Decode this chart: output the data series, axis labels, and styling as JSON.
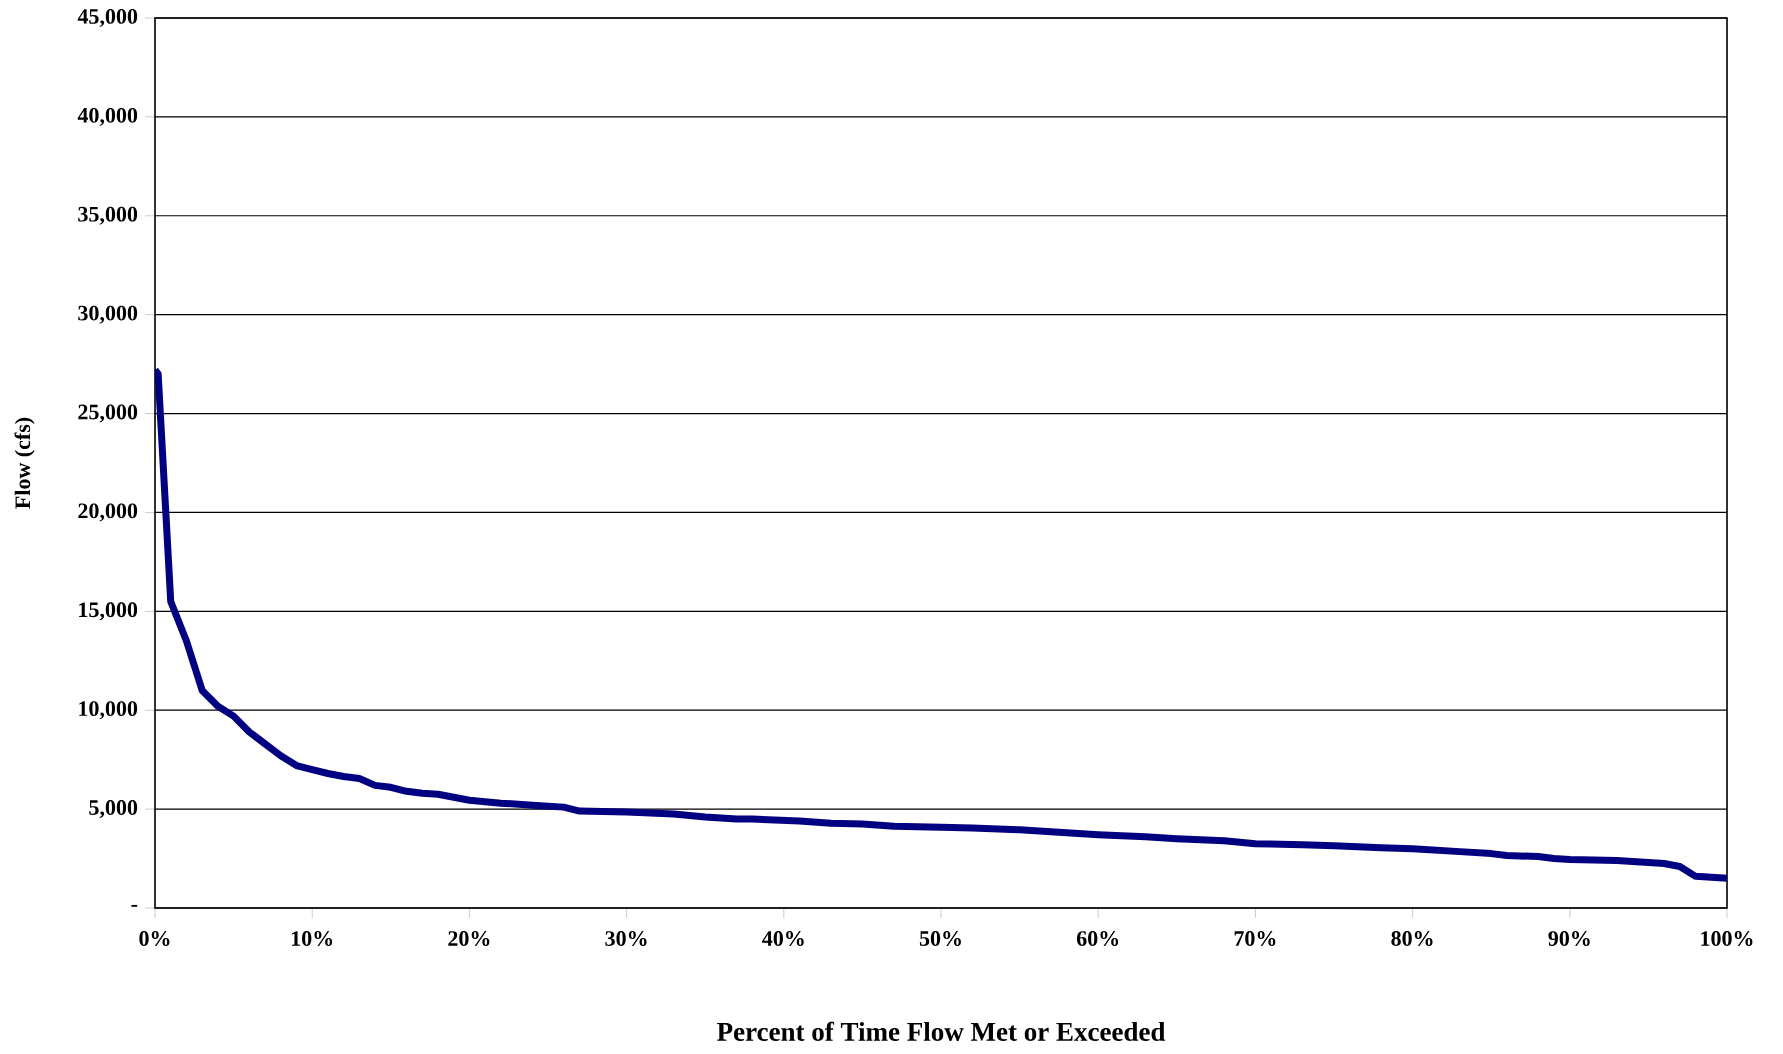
{
  "chart_data": {
    "type": "line",
    "xlabel": "Percent of Time Flow Met or Exceeded",
    "ylabel": "Flow (cfs)",
    "x": [
      0,
      0.2,
      1,
      2,
      3,
      4,
      5,
      6,
      7,
      8,
      9,
      10,
      11,
      12,
      13,
      14,
      15,
      16,
      17,
      18,
      19,
      20,
      22,
      24,
      26,
      27,
      30,
      33,
      35,
      37,
      38,
      41,
      43,
      45,
      47,
      50,
      52,
      55,
      58,
      60,
      63,
      65,
      68,
      70,
      73,
      75,
      78,
      80,
      83,
      85,
      86,
      88,
      89,
      90,
      93,
      95,
      96,
      97,
      98,
      100
    ],
    "series": [
      {
        "color": "#000080",
        "values": [
          27200,
          27000,
          15500,
          13500,
          11000,
          10200,
          9700,
          8900,
          8300,
          7700,
          7200,
          7000,
          6800,
          6650,
          6550,
          6200,
          6100,
          5900,
          5800,
          5750,
          5600,
          5450,
          5300,
          5200,
          5100,
          4900,
          4850,
          4750,
          4600,
          4500,
          4500,
          4400,
          4280,
          4250,
          4130,
          4080,
          4050,
          3950,
          3800,
          3700,
          3600,
          3500,
          3400,
          3250,
          3200,
          3150,
          3050,
          3000,
          2850,
          2750,
          2650,
          2600,
          2500,
          2450,
          2400,
          2300,
          2250,
          2100,
          1600,
          1500
        ]
      }
    ],
    "xlim": [
      0,
      100
    ],
    "xticks": [
      {
        "value": 0,
        "label": "0%"
      },
      {
        "value": 10,
        "label": "10%"
      },
      {
        "value": 20,
        "label": "20%"
      },
      {
        "value": 30,
        "label": "30%"
      },
      {
        "value": 40,
        "label": "40%"
      },
      {
        "value": 50,
        "label": "50%"
      },
      {
        "value": 60,
        "label": "60%"
      },
      {
        "value": 70,
        "label": "70%"
      },
      {
        "value": 80,
        "label": "80%"
      },
      {
        "value": 90,
        "label": "90%"
      },
      {
        "value": 100,
        "label": "100%"
      }
    ],
    "ylim": [
      0,
      45000
    ],
    "yticks": [
      {
        "value": 0,
        "label": "-"
      },
      {
        "value": 5000,
        "label": "5,000"
      },
      {
        "value": 10000,
        "label": "10,000"
      },
      {
        "value": 15000,
        "label": "15,000"
      },
      {
        "value": 20000,
        "label": "20,000"
      },
      {
        "value": 25000,
        "label": "25,000"
      },
      {
        "value": 30000,
        "label": "30,000"
      },
      {
        "value": 35000,
        "label": "35,000"
      },
      {
        "value": 40000,
        "label": "40,000"
      },
      {
        "value": 45000,
        "label": "45,000"
      }
    ],
    "grid": "y"
  }
}
